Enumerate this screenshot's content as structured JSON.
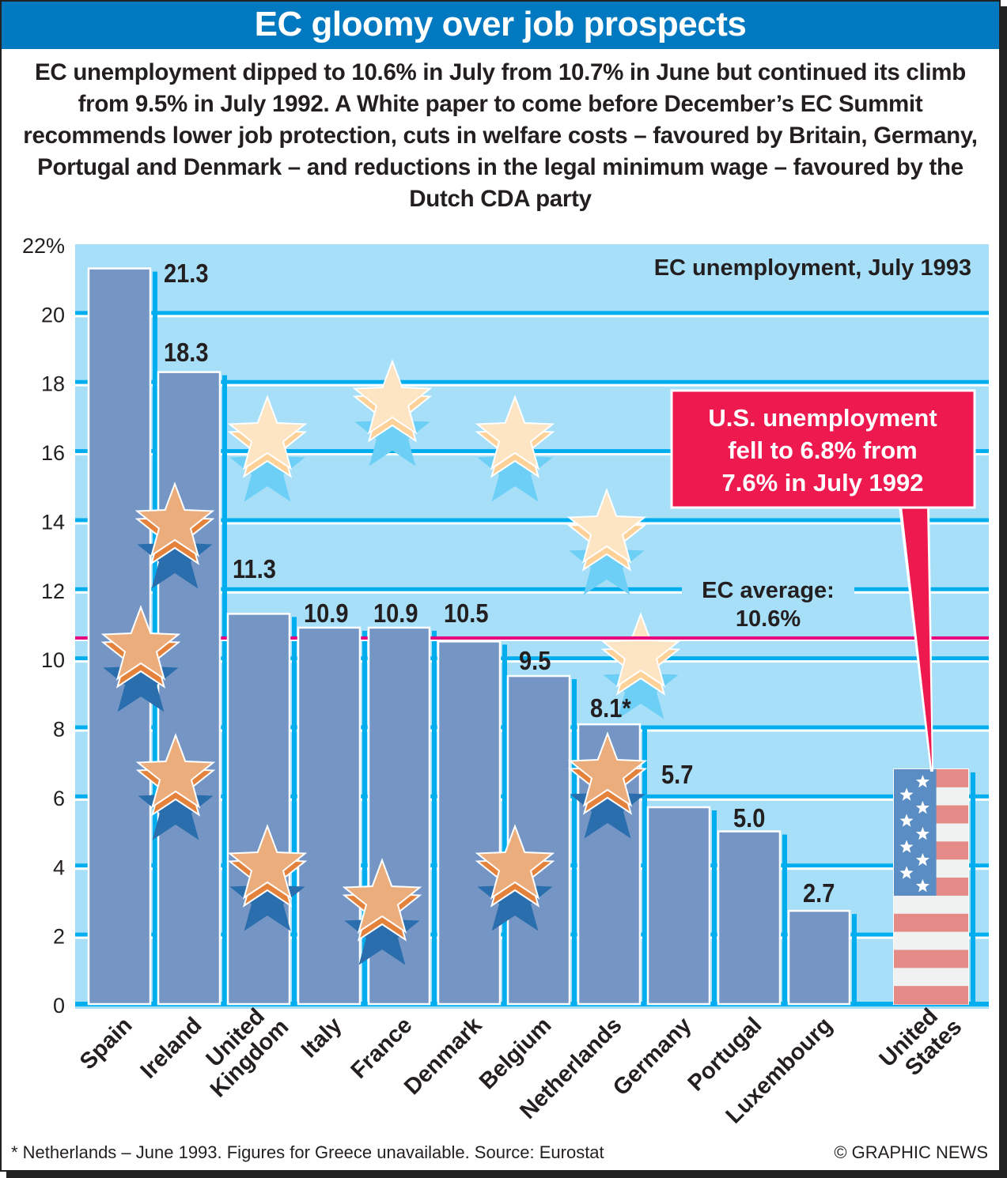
{
  "header": {
    "title": "EC gloomy over job prospects",
    "intro": "EC unemployment dipped to 10.6% in July from 10.7% in June but continued its climb from 9.5% in July 1992. A White paper to come before December’s EC Summit recommends lower job protection, cuts in welfare costs – favoured by Britain, Germany, Portugal and Denmark – and reductions in the legal minimum wage – favoured by the Dutch CDA party"
  },
  "colors": {
    "title_bar": "#0079c1",
    "plot_bg": "#a6dff7",
    "grid": "#00aeef",
    "bar": "#7596c4",
    "average_line": "#e6007e",
    "callout": "#ee1a4f",
    "star_light": "#fde4c2",
    "star_dark": "#ecad7c",
    "star_shadow_dark": "#2a6ead",
    "star_shadow_light": "#6dcff6",
    "flag_red": "#e48b87",
    "flag_white": "#f0f1f1",
    "flag_blue": "#5a8dc4"
  },
  "chart_data": {
    "type": "bar",
    "title": "EC unemployment, July 1993",
    "xlabel": "",
    "ylabel": "",
    "y_unit": "%",
    "ylim": [
      0,
      22
    ],
    "yticks": [
      0,
      2,
      4,
      6,
      8,
      10,
      12,
      14,
      16,
      18,
      20,
      22
    ],
    "ytick_labels": [
      "0",
      "2",
      "4",
      "6",
      "8",
      "10",
      "12",
      "14",
      "16",
      "18",
      "20",
      "22%"
    ],
    "grid": true,
    "categories": [
      "Spain",
      "Ireland",
      "United Kingdom",
      "Italy",
      "France",
      "Denmark",
      "Belgium",
      "Netherlands",
      "Germany",
      "Portugal",
      "Luxembourg",
      "United States"
    ],
    "category_lines": [
      [
        "Spain"
      ],
      [
        "Ireland"
      ],
      [
        "United",
        "Kingdom"
      ],
      [
        "Italy"
      ],
      [
        "France"
      ],
      [
        "Denmark"
      ],
      [
        "Belgium"
      ],
      [
        "Netherlands"
      ],
      [
        "Germany"
      ],
      [
        "Portugal"
      ],
      [
        "Luxembourg"
      ],
      [
        "United",
        "States"
      ]
    ],
    "values": [
      21.3,
      18.3,
      11.3,
      10.9,
      10.9,
      10.5,
      9.5,
      8.1,
      5.7,
      5.0,
      2.7,
      6.8
    ],
    "data_labels": [
      "21.3",
      "18.3",
      "11.3",
      "10.9",
      "10.9",
      "10.5",
      "9.5",
      "8.1*",
      "5.7",
      "5.0",
      "2.7",
      ""
    ],
    "average": {
      "value": 10.6,
      "label_line1": "EC average:",
      "label_line2": "10.6%"
    },
    "callout": {
      "lines": [
        "U.S. unemployment",
        "fell to 6.8% from",
        "7.6% in July 1992"
      ]
    }
  },
  "footer": {
    "footnote": "* Netherlands – June 1993. Figures for Greece unavailable. Source: Eurostat",
    "credit": "© GRAPHIC NEWS"
  }
}
